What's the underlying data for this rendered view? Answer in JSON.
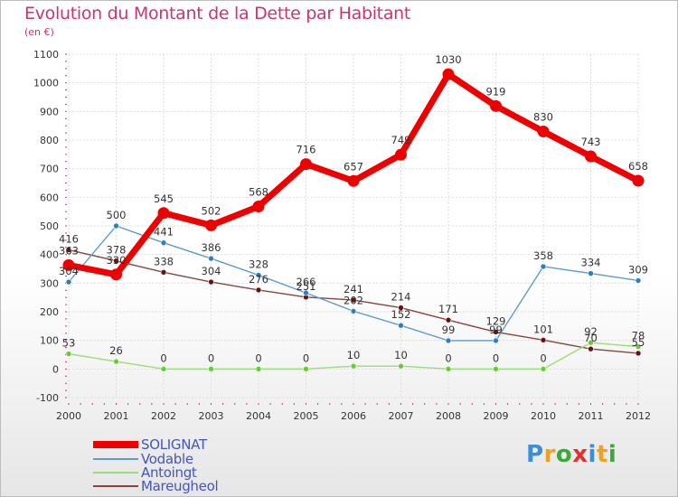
{
  "title": "Evolution du Montant de la Dette par Habitant",
  "subtitle": "(en €)",
  "logo": {
    "text": "Proxiti",
    "letters": [
      {
        "ch": "P",
        "color": "#3a8fd6"
      },
      {
        "ch": "r",
        "color": "#f0a020"
      },
      {
        "ch": "o",
        "color": "#3aa83a"
      },
      {
        "ch": "x",
        "color": "#e03030"
      },
      {
        "ch": "i",
        "color": "#3a8fd6"
      },
      {
        "ch": "t",
        "color": "#f0a020"
      },
      {
        "ch": "i",
        "color": "#3aa83a"
      }
    ]
  },
  "chart_data": {
    "type": "line",
    "title": "Evolution du Montant de la Dette par Habitant",
    "subtitle": "(en €)",
    "x": [
      "2000",
      "2001",
      "2002",
      "2003",
      "2004",
      "2005",
      "2006",
      "2007",
      "2008",
      "2009",
      "2010",
      "2011",
      "2012"
    ],
    "ylim": [
      -100,
      1100
    ],
    "yticks": [
      -100,
      0,
      100,
      200,
      300,
      400,
      500,
      600,
      700,
      800,
      900,
      1000,
      1100
    ],
    "grid": true,
    "legend_position": "bottom-left",
    "series": [
      {
        "name": "SOLIGNAT",
        "color": "#ee0000",
        "marker": "#ee0000",
        "values": [
          363,
          330,
          545,
          502,
          568,
          716,
          657,
          749,
          1030,
          919,
          830,
          743,
          658
        ],
        "labels": [
          "363",
          "330",
          "545",
          "502",
          "568",
          "716",
          "657",
          "749",
          "1030",
          "919",
          "830",
          "743",
          "658"
        ]
      },
      {
        "name": "Vodable",
        "color": "#5b9bd0",
        "marker": "#2f7fc0",
        "values": [
          304,
          500,
          441,
          386,
          328,
          266,
          202,
          152,
          99,
          99,
          358,
          334,
          309
        ],
        "labels": [
          "304",
          "500",
          "441",
          "386",
          "328",
          "266",
          "202",
          "152",
          "99",
          "99",
          "358",
          "334",
          "309"
        ]
      },
      {
        "name": "Antoingt",
        "color": "#99dd77",
        "marker": "#66cc33",
        "values": [
          53,
          26,
          0,
          0,
          0,
          0,
          10,
          10,
          0,
          0,
          0,
          92,
          78
        ],
        "labels": [
          "53",
          "26",
          "0",
          "0",
          "0",
          "0",
          "10",
          "10",
          "0",
          "0",
          "0",
          "92",
          "78"
        ]
      },
      {
        "name": "Mareugheol",
        "color": "#884444",
        "marker": "#661111",
        "values": [
          416,
          378,
          338,
          304,
          276,
          251,
          241,
          214,
          171,
          129,
          101,
          70,
          55
        ],
        "labels": [
          "416",
          "378",
          "338",
          "304",
          "276",
          "251",
          "241",
          "214",
          "171",
          "129",
          "101",
          "70",
          "55"
        ]
      }
    ]
  }
}
